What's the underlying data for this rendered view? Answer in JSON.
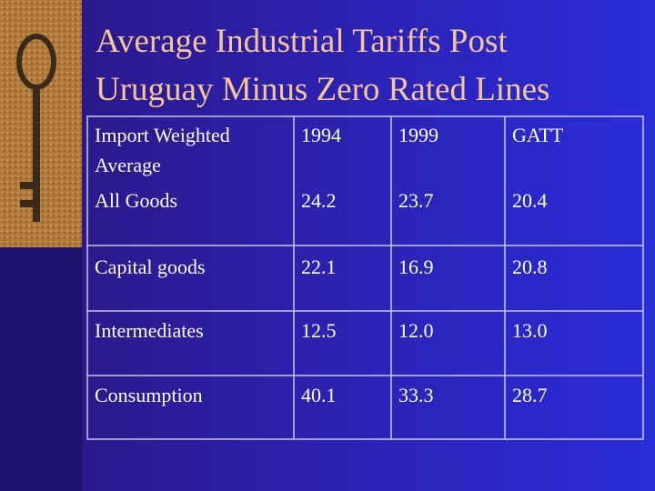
{
  "title": {
    "line1": "Average Industrial Tariffs Post",
    "line2": "Uruguay Minus Zero Rated Lines"
  },
  "table": {
    "header": [
      "Import Weighted Average",
      "1994",
      "1999",
      "GATT"
    ],
    "rows": [
      [
        "All Goods",
        "24.2",
        "23.7",
        "20.4"
      ],
      [
        "Capital goods",
        "22.1",
        "16.9",
        "20.8"
      ],
      [
        "Intermediates",
        "12.5",
        "12.0",
        "13.0"
      ],
      [
        "Consumption",
        "40.1",
        "33.3",
        "28.7"
      ]
    ]
  }
}
